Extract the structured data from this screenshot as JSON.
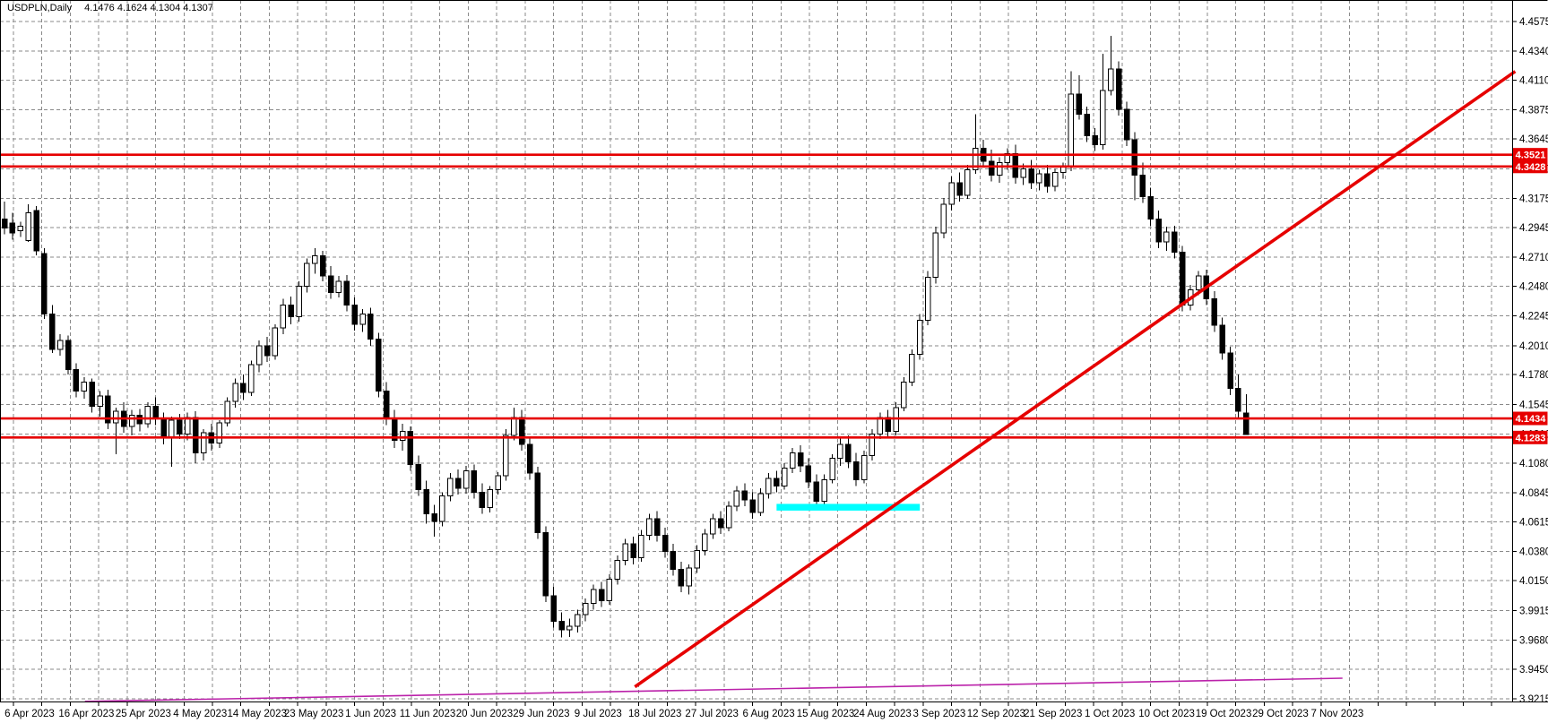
{
  "window": {
    "title_symbol": "USDPLN,Daily",
    "title_ohlc": "4.1476 4.1624 4.1304 4.1307"
  },
  "chart_data": {
    "type": "candlestick",
    "symbol": "USDPLN",
    "timeframe": "Daily",
    "title": "USDPLN,Daily",
    "last_bar": {
      "open": 4.1476,
      "high": 4.1624,
      "low": 4.1304,
      "close": 4.1307
    },
    "ylim": [
      3.9095,
      4.4745
    ],
    "grid": true,
    "y_axis_ticks": [
      4.4575,
      4.434,
      4.411,
      4.3875,
      4.3645,
      4.341,
      4.3175,
      4.2945,
      4.271,
      4.248,
      4.2245,
      4.201,
      4.178,
      4.1545,
      4.131,
      4.108,
      4.0845,
      4.0615,
      4.038,
      4.015,
      3.9915,
      3.968,
      3.945,
      3.9215
    ],
    "x_axis_labels": [
      "6 Apr 2023",
      "16 Apr 2023",
      "25 Apr 2023",
      "4 May 2023",
      "14 May 2023",
      "23 May 2023",
      "1 Jun 2023",
      "11 Jun 2023",
      "20 Jun 2023",
      "29 Jun 2023",
      "9 Jul 2023",
      "18 Jul 2023",
      "27 Jul 2023",
      "6 Aug 2023",
      "15 Aug 2023",
      "24 Aug 2023",
      "3 Sep 2023",
      "12 Sep 2023",
      "21 Sep 2023",
      "1 Oct 2023",
      "10 Oct 2023",
      "19 Oct 2023",
      "29 Oct 2023",
      "7 Nov 2023"
    ],
    "price_tags": [
      4.3521,
      4.3428,
      4.1434,
      4.1283
    ],
    "overlays": {
      "horizontal_lines": [
        4.3521,
        4.3428,
        4.1434,
        4.1283
      ],
      "trend_line": {
        "bar1": 79.2,
        "price1": 3.931,
        "bar2": 189.8,
        "price2": 4.418
      },
      "flat_trend_line": {
        "bar1": 10.1,
        "price1": 3.9194,
        "bar2": 168.1,
        "price2": 3.9378
      },
      "cyan_zone": {
        "bar_start": 97,
        "bar_end": 115,
        "price": 4.0731
      }
    },
    "colors": {
      "background": "#ffffff",
      "grid": "#8a8a8a",
      "bull_fill": "#ffffff",
      "bear_fill": "#000000",
      "outline": "#000000",
      "object_red": "#e60000",
      "object_magenta": "#bb22aa",
      "object_cyan": "#00ffff",
      "tag_bg": "#e60000",
      "tag_text": "#ffffff",
      "axis_text": "#000000"
    },
    "candles": [
      [
        4.301,
        4.315,
        4.289,
        4.294
      ],
      [
        4.298,
        4.306,
        4.285,
        4.29
      ],
      [
        4.292,
        4.299,
        4.287,
        4.2955
      ],
      [
        4.284,
        4.313,
        4.283,
        4.306
      ],
      [
        4.308,
        4.3115,
        4.2725,
        4.276
      ],
      [
        4.274,
        4.278,
        4.222,
        4.226
      ],
      [
        4.226,
        4.233,
        4.195,
        4.198
      ],
      [
        4.198,
        4.21,
        4.193,
        4.205
      ],
      [
        4.205,
        4.209,
        4.178,
        4.182
      ],
      [
        4.182,
        4.187,
        4.16,
        4.165
      ],
      [
        4.165,
        4.176,
        4.159,
        4.172
      ],
      [
        4.172,
        4.175,
        4.148,
        4.153
      ],
      [
        4.153,
        4.165,
        4.145,
        4.161
      ],
      [
        4.161,
        4.166,
        4.135,
        4.14
      ],
      [
        4.14,
        4.152,
        4.115,
        4.149
      ],
      [
        4.149,
        4.156,
        4.132,
        4.137
      ],
      [
        4.137,
        4.15,
        4.13,
        4.146
      ],
      [
        4.146,
        4.151,
        4.133,
        4.139
      ],
      [
        4.139,
        4.156,
        4.136,
        4.153
      ],
      [
        4.153,
        4.16,
        4.138,
        4.143
      ],
      [
        4.143,
        4.148,
        4.123,
        4.128
      ],
      [
        4.128,
        4.145,
        4.105,
        4.142
      ],
      [
        4.142,
        4.147,
        4.127,
        4.131
      ],
      [
        4.131,
        4.148,
        4.126,
        4.144
      ],
      [
        4.144,
        4.149,
        4.108,
        4.116
      ],
      [
        4.116,
        4.135,
        4.11,
        4.132
      ],
      [
        4.132,
        4.139,
        4.118,
        4.124
      ],
      [
        4.124,
        4.142,
        4.12,
        4.14
      ],
      [
        4.14,
        4.16,
        4.137,
        4.157
      ],
      [
        4.157,
        4.175,
        4.152,
        4.171
      ],
      [
        4.171,
        4.178,
        4.158,
        4.164
      ],
      [
        4.164,
        4.189,
        4.161,
        4.186
      ],
      [
        4.186,
        4.205,
        4.18,
        4.201
      ],
      [
        4.201,
        4.208,
        4.188,
        4.193
      ],
      [
        4.193,
        4.218,
        4.19,
        4.215
      ],
      [
        4.215,
        4.238,
        4.21,
        4.233
      ],
      [
        4.233,
        4.24,
        4.218,
        4.224
      ],
      [
        4.224,
        4.252,
        4.22,
        4.248
      ],
      [
        4.248,
        4.27,
        4.243,
        4.266
      ],
      [
        4.266,
        4.278,
        4.258,
        4.272
      ],
      [
        4.272,
        4.276,
        4.252,
        4.256
      ],
      [
        4.256,
        4.264,
        4.238,
        4.243
      ],
      [
        4.243,
        4.256,
        4.239,
        4.252
      ],
      [
        4.252,
        4.257,
        4.228,
        4.233
      ],
      [
        4.233,
        4.239,
        4.213,
        4.218
      ],
      [
        4.218,
        4.23,
        4.212,
        4.226
      ],
      [
        4.226,
        4.231,
        4.201,
        4.206
      ],
      [
        4.206,
        4.211,
        4.16,
        4.165
      ],
      [
        4.165,
        4.172,
        4.138,
        4.143
      ],
      [
        4.143,
        4.15,
        4.12,
        4.126
      ],
      [
        4.126,
        4.139,
        4.118,
        4.133
      ],
      [
        4.133,
        4.137,
        4.102,
        4.107
      ],
      [
        4.107,
        4.114,
        4.082,
        4.087
      ],
      [
        4.087,
        4.094,
        4.06,
        4.068
      ],
      [
        4.068,
        4.075,
        4.05,
        4.062
      ],
      [
        4.062,
        4.085,
        4.058,
        4.082
      ],
      [
        4.082,
        4.1,
        4.078,
        4.096
      ],
      [
        4.096,
        4.103,
        4.083,
        4.088
      ],
      [
        4.088,
        4.106,
        4.084,
        4.102
      ],
      [
        4.102,
        4.107,
        4.08,
        4.085
      ],
      [
        4.085,
        4.092,
        4.068,
        4.073
      ],
      [
        4.073,
        4.09,
        4.069,
        4.087
      ],
      [
        4.087,
        4.101,
        4.083,
        4.098
      ],
      [
        4.098,
        4.135,
        4.094,
        4.13
      ],
      [
        4.13,
        4.152,
        4.126,
        4.144
      ],
      [
        4.144,
        4.15,
        4.118,
        4.123
      ],
      [
        4.123,
        4.128,
        4.095,
        4.1
      ],
      [
        4.1,
        4.105,
        4.048,
        4.053
      ],
      [
        4.053,
        4.058,
        3.998,
        4.003
      ],
      [
        4.003,
        4.01,
        3.978,
        3.983
      ],
      [
        3.983,
        3.99,
        3.97,
        3.976
      ],
      [
        3.976,
        3.985,
        3.9705,
        3.979
      ],
      [
        3.979,
        3.992,
        3.974,
        3.988
      ],
      [
        3.988,
        4.001,
        3.983,
        3.997
      ],
      [
        3.997,
        4.012,
        3.992,
        4.008
      ],
      [
        4.008,
        4.014,
        3.994,
        3.999
      ],
      [
        3.999,
        4.02,
        3.996,
        4.016
      ],
      [
        4.016,
        4.035,
        4.012,
        4.031
      ],
      [
        4.031,
        4.048,
        4.027,
        4.044
      ],
      [
        4.044,
        4.05,
        4.028,
        4.033
      ],
      [
        4.033,
        4.055,
        4.03,
        4.051
      ],
      [
        4.051,
        4.068,
        4.047,
        4.064
      ],
      [
        4.064,
        4.07,
        4.046,
        4.051
      ],
      [
        4.051,
        4.057,
        4.033,
        4.038
      ],
      [
        4.038,
        4.044,
        4.019,
        4.024
      ],
      [
        4.024,
        4.03,
        4.006,
        4.011
      ],
      [
        4.011,
        4.028,
        4.004,
        4.025
      ],
      [
        4.025,
        4.043,
        4.021,
        4.039
      ],
      [
        4.039,
        4.056,
        4.035,
        4.052
      ],
      [
        4.052,
        4.068,
        4.048,
        4.064
      ],
      [
        4.064,
        4.07,
        4.052,
        4.057
      ],
      [
        4.057,
        4.078,
        4.054,
        4.074
      ],
      [
        4.074,
        4.09,
        4.07,
        4.086
      ],
      [
        4.086,
        4.092,
        4.074,
        4.079
      ],
      [
        4.079,
        4.085,
        4.064,
        4.069
      ],
      [
        4.069,
        4.088,
        4.066,
        4.084
      ],
      [
        4.084,
        4.1,
        4.08,
        4.096
      ],
      [
        4.096,
        4.102,
        4.085,
        4.09
      ],
      [
        4.09,
        4.108,
        4.087,
        4.104
      ],
      [
        4.104,
        4.12,
        4.1,
        4.116
      ],
      [
        4.116,
        4.122,
        4.101,
        4.106
      ],
      [
        4.106,
        4.112,
        4.088,
        4.093
      ],
      [
        4.093,
        4.099,
        4.072,
        4.078
      ],
      [
        4.078,
        4.099,
        4.074,
        4.095
      ],
      [
        4.095,
        4.115,
        4.092,
        4.112
      ],
      [
        4.112,
        4.128,
        4.106,
        4.123
      ],
      [
        4.123,
        4.13,
        4.104,
        4.109
      ],
      [
        4.109,
        4.116,
        4.09,
        4.095
      ],
      [
        4.095,
        4.118,
        4.092,
        4.114
      ],
      [
        4.114,
        4.135,
        4.11,
        4.131
      ],
      [
        4.131,
        4.148,
        4.127,
        4.144
      ],
      [
        4.144,
        4.15,
        4.128,
        4.133
      ],
      [
        4.133,
        4.156,
        4.13,
        4.152
      ],
      [
        4.152,
        4.176,
        4.149,
        4.172
      ],
      [
        4.172,
        4.198,
        4.169,
        4.194
      ],
      [
        4.194,
        4.226,
        4.19,
        4.221
      ],
      [
        4.221,
        4.26,
        4.217,
        4.255
      ],
      [
        4.255,
        4.295,
        4.25,
        4.29
      ],
      [
        4.29,
        4.318,
        4.286,
        4.313
      ],
      [
        4.313,
        4.335,
        4.308,
        4.33
      ],
      [
        4.33,
        4.338,
        4.315,
        4.32
      ],
      [
        4.32,
        4.344,
        4.317,
        4.34
      ],
      [
        4.34,
        4.384,
        4.337,
        4.357
      ],
      [
        4.357,
        4.364,
        4.342,
        4.347
      ],
      [
        4.347,
        4.356,
        4.331,
        4.336
      ],
      [
        4.336,
        4.35,
        4.33,
        4.346
      ],
      [
        4.346,
        4.357,
        4.34,
        4.353
      ],
      [
        4.353,
        4.36,
        4.329,
        4.334
      ],
      [
        4.334,
        4.345,
        4.328,
        4.341
      ],
      [
        4.341,
        4.348,
        4.325,
        4.33
      ],
      [
        4.33,
        4.34,
        4.324,
        4.337
      ],
      [
        4.337,
        4.344,
        4.322,
        4.327
      ],
      [
        4.327,
        4.341,
        4.323,
        4.338
      ],
      [
        4.338,
        4.346,
        4.333,
        4.343
      ],
      [
        4.343,
        4.418,
        4.339,
        4.4
      ],
      [
        4.4,
        4.415,
        4.38,
        4.384
      ],
      [
        4.384,
        4.39,
        4.362,
        4.367
      ],
      [
        4.367,
        4.373,
        4.355,
        4.36
      ],
      [
        4.36,
        4.432,
        4.356,
        4.403
      ],
      [
        4.403,
        4.446,
        4.399,
        4.42
      ],
      [
        4.42,
        4.426,
        4.383,
        4.388
      ],
      [
        4.388,
        4.394,
        4.359,
        4.364
      ],
      [
        4.364,
        4.37,
        4.316,
        4.336
      ],
      [
        4.336,
        4.346,
        4.314,
        4.319
      ],
      [
        4.319,
        4.326,
        4.296,
        4.301
      ],
      [
        4.301,
        4.308,
        4.278,
        4.283
      ],
      [
        4.283,
        4.295,
        4.276,
        4.291
      ],
      [
        4.291,
        4.296,
        4.27,
        4.275
      ],
      [
        4.275,
        4.28,
        4.228,
        4.233
      ],
      [
        4.233,
        4.249,
        4.229,
        4.245
      ],
      [
        4.245,
        4.26,
        4.241,
        4.256
      ],
      [
        4.256,
        4.261,
        4.233,
        4.238
      ],
      [
        4.238,
        4.244,
        4.212,
        4.217
      ],
      [
        4.217,
        4.223,
        4.19,
        4.195
      ],
      [
        4.195,
        4.2,
        4.162,
        4.167
      ],
      [
        4.167,
        4.178,
        4.144,
        4.149
      ],
      [
        4.1476,
        4.1624,
        4.1304,
        4.1307
      ]
    ]
  }
}
